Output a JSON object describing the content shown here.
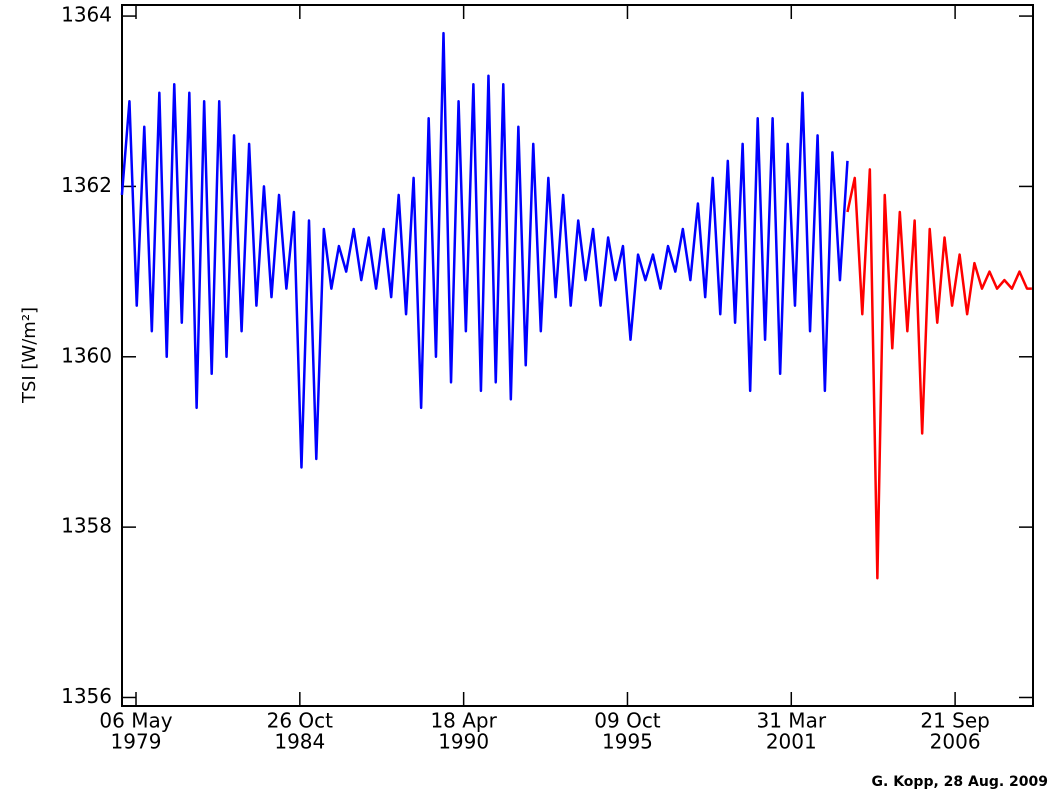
{
  "chart_data": {
    "type": "line",
    "y_label": "TSI [W/m²]",
    "annotation": "G. Kopp, 28 Aug. 2009",
    "xlim": [
      "1978-11-16",
      "2009-04-29"
    ],
    "ylim": [
      1355.9,
      1364.13
    ],
    "yticks": [
      1356,
      1358,
      1360,
      1362,
      1364
    ],
    "xticks": [
      {
        "value": "1979-05-06",
        "label": [
          "06 May",
          "1979"
        ]
      },
      {
        "value": "1984-10-26",
        "label": [
          "26 Oct",
          "1984"
        ]
      },
      {
        "value": "1990-04-18",
        "label": [
          "18 Apr",
          "1990"
        ]
      },
      {
        "value": "1995-10-09",
        "label": [
          "09 Oct",
          "1995"
        ]
      },
      {
        "value": "2001-03-31",
        "label": [
          "31 Mar",
          "2001"
        ]
      },
      {
        "value": "2006-09-21",
        "label": [
          "21 Sep",
          "2006"
        ]
      }
    ],
    "series": [
      {
        "color": "#0000ff",
        "x": [
          "1978-11-15",
          "1979-02-15",
          "1979-05-15",
          "1979-08-15",
          "1979-11-15",
          "1980-02-15",
          "1980-05-15",
          "1980-08-15",
          "1980-11-15",
          "1981-02-15",
          "1981-05-15",
          "1981-08-15",
          "1981-11-15",
          "1982-02-15",
          "1982-05-15",
          "1982-08-15",
          "1982-11-15",
          "1983-02-15",
          "1983-05-15",
          "1983-08-15",
          "1983-11-15",
          "1984-02-15",
          "1984-05-15",
          "1984-08-15",
          "1984-11-15",
          "1985-02-15",
          "1985-05-15",
          "1985-08-15",
          "1985-11-15",
          "1986-02-15",
          "1986-05-15",
          "1986-08-15",
          "1986-11-15",
          "1987-02-15",
          "1987-05-15",
          "1987-08-15",
          "1987-11-15",
          "1988-02-15",
          "1988-05-15",
          "1988-08-15",
          "1988-11-15",
          "1989-02-15",
          "1989-05-15",
          "1989-08-15",
          "1989-11-15",
          "1990-02-15",
          "1990-05-15",
          "1990-08-15",
          "1990-11-15",
          "1991-02-15",
          "1991-05-15",
          "1991-08-15",
          "1991-11-15",
          "1992-02-15",
          "1992-05-15",
          "1992-08-15",
          "1992-11-15",
          "1993-02-15",
          "1993-05-15",
          "1993-08-15",
          "1993-11-15",
          "1994-02-15",
          "1994-05-15",
          "1994-08-15",
          "1994-11-15",
          "1995-02-15",
          "1995-05-15",
          "1995-08-15",
          "1995-11-15",
          "1996-02-15",
          "1996-05-15",
          "1996-08-15",
          "1996-11-15",
          "1997-02-15",
          "1997-05-15",
          "1997-08-15",
          "1997-11-15",
          "1998-02-15",
          "1998-05-15",
          "1998-08-15",
          "1998-11-15",
          "1999-02-15",
          "1999-05-15",
          "1999-08-15",
          "1999-11-15",
          "2000-02-15",
          "2000-05-15",
          "2000-08-15",
          "2000-11-15",
          "2001-02-15",
          "2001-05-15",
          "2001-08-15",
          "2001-11-15",
          "2002-02-15",
          "2002-05-15",
          "2002-08-15",
          "2002-11-15",
          "2003-02-15"
        ],
        "values": [
          1361.9,
          1363.0,
          1360.6,
          1362.7,
          1360.3,
          1363.1,
          1360.0,
          1363.2,
          1360.4,
          1363.1,
          1359.4,
          1363.0,
          1359.8,
          1363.0,
          1360.0,
          1362.6,
          1360.3,
          1362.5,
          1360.6,
          1362.0,
          1360.7,
          1361.9,
          1360.8,
          1361.7,
          1358.7,
          1361.6,
          1358.8,
          1361.5,
          1360.8,
          1361.3,
          1361.0,
          1361.5,
          1360.9,
          1361.4,
          1360.8,
          1361.5,
          1360.7,
          1361.9,
          1360.5,
          1362.1,
          1359.4,
          1362.8,
          1360.0,
          1363.8,
          1359.7,
          1363.0,
          1360.3,
          1363.2,
          1359.6,
          1363.3,
          1359.7,
          1363.2,
          1359.5,
          1362.7,
          1359.9,
          1362.5,
          1360.3,
          1362.1,
          1360.7,
          1361.9,
          1360.6,
          1361.6,
          1360.9,
          1361.5,
          1360.6,
          1361.4,
          1360.9,
          1361.3,
          1360.2,
          1361.2,
          1360.9,
          1361.2,
          1360.8,
          1361.3,
          1361.0,
          1361.5,
          1360.9,
          1361.8,
          1360.7,
          1362.1,
          1360.5,
          1362.3,
          1360.4,
          1362.5,
          1359.6,
          1362.8,
          1360.2,
          1362.8,
          1359.8,
          1362.5,
          1360.6,
          1363.1,
          1360.3,
          1362.6,
          1359.6,
          1362.4,
          1360.9,
          1362.3
        ]
      },
      {
        "color": "#ff0000",
        "x": [
          "2003-02-15",
          "2003-05-15",
          "2003-08-15",
          "2003-11-15",
          "2004-02-15",
          "2004-05-15",
          "2004-08-15",
          "2004-11-15",
          "2005-02-15",
          "2005-05-15",
          "2005-08-15",
          "2005-11-15",
          "2006-02-15",
          "2006-05-15",
          "2006-08-15",
          "2006-11-15",
          "2007-02-15",
          "2007-05-15",
          "2007-08-15",
          "2007-11-15",
          "2008-02-15",
          "2008-05-15",
          "2008-08-15",
          "2008-11-15",
          "2009-02-15",
          "2009-04-15"
        ],
        "values": [
          1361.7,
          1362.1,
          1360.5,
          1362.2,
          1357.4,
          1361.9,
          1360.1,
          1361.7,
          1360.3,
          1361.6,
          1359.1,
          1361.5,
          1360.4,
          1361.4,
          1360.6,
          1361.2,
          1360.5,
          1361.1,
          1360.8,
          1361.0,
          1360.8,
          1360.9,
          1360.8,
          1361.0,
          1360.8,
          1360.8
        ]
      }
    ]
  }
}
